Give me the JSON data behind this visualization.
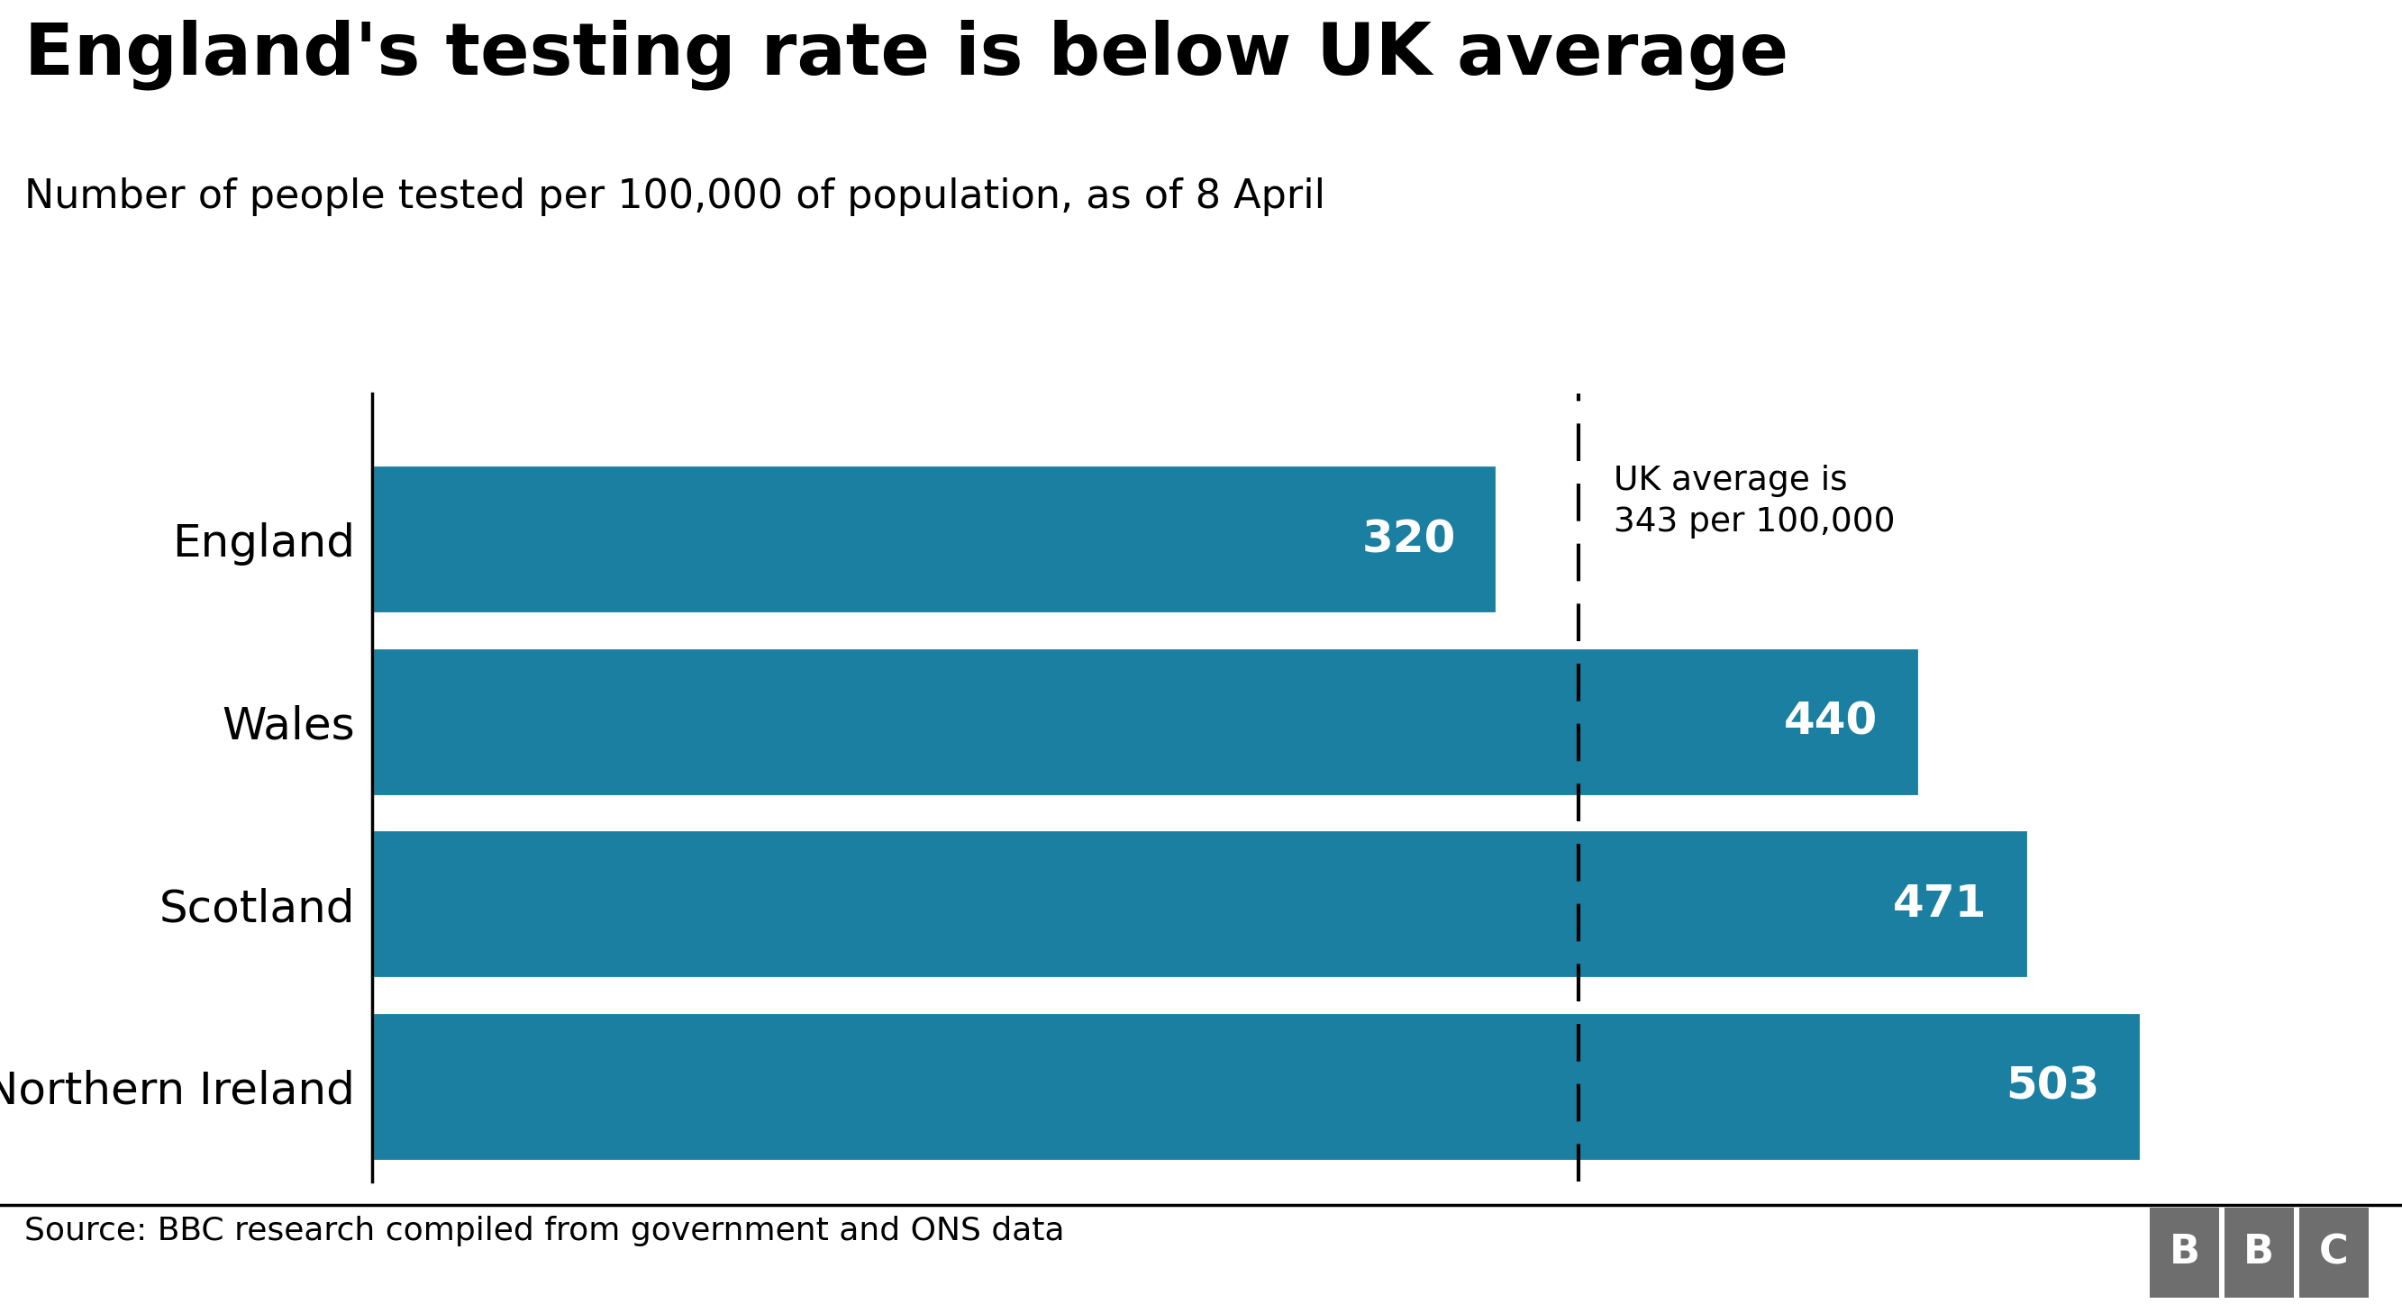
{
  "title": "England's testing rate is below UK average",
  "subtitle": "Number of people tested per 100,000 of population, as of 8 April",
  "source": "Source: BBC research compiled from government and ONS data",
  "categories": [
    "England",
    "Wales",
    "Scotland",
    "Northern Ireland"
  ],
  "values": [
    320,
    440,
    471,
    503
  ],
  "bar_color": "#1a7fa0",
  "value_labels": [
    "320",
    "440",
    "471",
    "503"
  ],
  "uk_average": 343,
  "uk_average_label": "UK average is\n343 per 100,000",
  "xlim": [
    0,
    560
  ],
  "background_color": "#ffffff",
  "title_fontsize": 58,
  "subtitle_fontsize": 32,
  "label_fontsize": 36,
  "value_fontsize": 36,
  "source_fontsize": 26,
  "bar_height": 0.82,
  "bar_edge_color": "white",
  "bbc_gray": "#6e6e6e"
}
